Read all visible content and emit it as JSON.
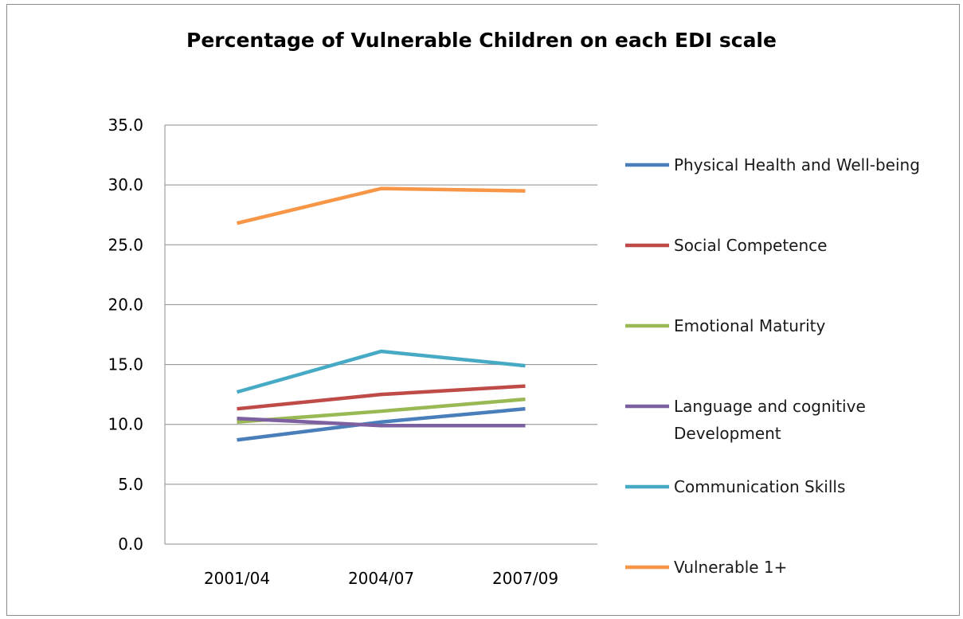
{
  "chart_data": {
    "type": "line",
    "title": "Percentage  of Vulnerable Children on each EDI scale",
    "categories": [
      "2001/04",
      "2004/07",
      "2007/09"
    ],
    "ylim": [
      0,
      35
    ],
    "yticks": [
      "0.0",
      "5.0",
      "10.0",
      "15.0",
      "20.0",
      "25.0",
      "30.0",
      "35.0"
    ],
    "grid": true,
    "legend_position": "right",
    "series": [
      {
        "name": "Physical Health and Well-being",
        "values": [
          8.7,
          10.2,
          11.3
        ],
        "color": "#4a7ebb"
      },
      {
        "name": "Social Competence",
        "values": [
          11.3,
          12.5,
          13.2
        ],
        "color": "#be4b48"
      },
      {
        "name": "Emotional Maturity",
        "values": [
          10.2,
          11.1,
          12.1
        ],
        "color": "#98b954"
      },
      {
        "name": [
          "Language and cognitive",
          "Development"
        ],
        "values": [
          10.5,
          9.9,
          9.9
        ],
        "color": "#7d60a0"
      },
      {
        "name": "Communication Skills",
        "values": [
          12.7,
          16.1,
          14.9
        ],
        "color": "#46aac5"
      },
      {
        "name": "Vulnerable 1+",
        "values": [
          26.8,
          29.7,
          29.5
        ],
        "color": "#f79646"
      }
    ]
  }
}
